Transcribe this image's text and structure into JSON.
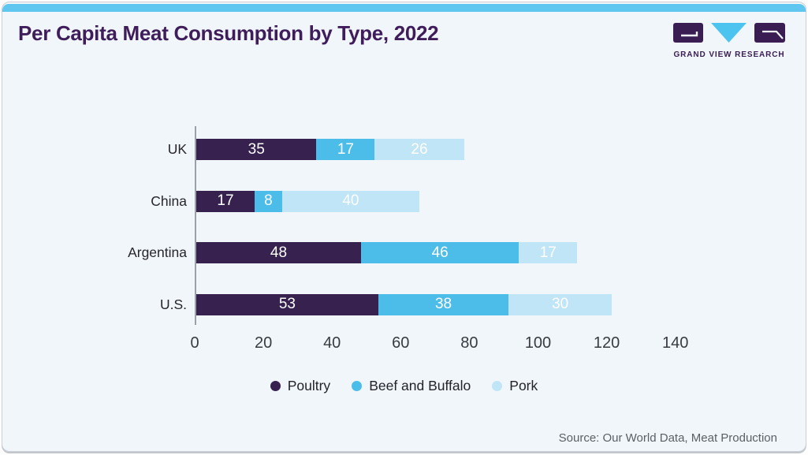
{
  "header": {
    "title": "Per Capita Meat Consumption by Type, 2022",
    "logo": {
      "brand": "GRAND VIEW RESEARCH"
    }
  },
  "chart_data": {
    "type": "bar",
    "orientation": "horizontal",
    "stacked": true,
    "title": "Per Capita Meat Consumption by Type, 2022",
    "categories": [
      "UK",
      "China",
      "Argentina",
      "U.S."
    ],
    "series": [
      {
        "name": "Poultry",
        "color": "#36214f",
        "values": [
          35,
          17,
          48,
          53
        ]
      },
      {
        "name": "Beef and Buffalo",
        "color": "#4cbce9",
        "values": [
          17,
          8,
          46,
          38
        ]
      },
      {
        "name": "Pork",
        "color": "#bfe5f6",
        "values": [
          26,
          40,
          17,
          30
        ]
      }
    ],
    "x_ticks": [
      0,
      20,
      40,
      60,
      80,
      100,
      120,
      140
    ],
    "xlim": [
      0,
      140
    ],
    "value_labels": "inside-white",
    "legend_position": "bottom",
    "grid": false
  },
  "footer": {
    "source": "Source: Our World Data, Meat Production"
  },
  "colors": {
    "card_background": "#f0f6fa",
    "top_strip": "#5fc6ef",
    "title_text": "#3f1d5b",
    "poultry": "#36214f",
    "beef_and_buffalo": "#4cbce9",
    "pork": "#bfe5f6",
    "logo_cyan": "#4dc3ef",
    "logo_purple": "#3a1d52",
    "axis_line": "#9aa0a7"
  }
}
